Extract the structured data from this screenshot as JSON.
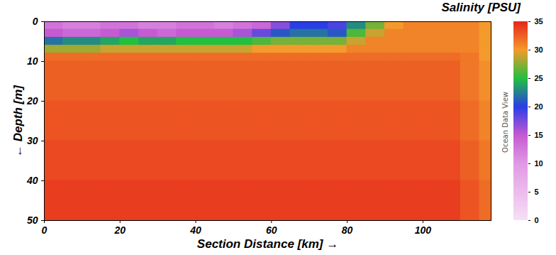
{
  "chart_data": {
    "type": "heatmap",
    "title": "Salinity [PSU]",
    "x_label": "Section Distance [km]",
    "y_label": "Depth [m]",
    "annotations": [
      "Ocean Data View"
    ],
    "xlim": [
      0,
      118
    ],
    "xticks": [
      0,
      20,
      40,
      60,
      80,
      100
    ],
    "ylim": [
      0,
      50
    ],
    "yticks": [
      0,
      10,
      20,
      30,
      40,
      50
    ],
    "x_edges": [
      0,
      5,
      10,
      15,
      20,
      25,
      30,
      35,
      40,
      45,
      50,
      55,
      60,
      65,
      70,
      75,
      80,
      85,
      90,
      95,
      100,
      105,
      110,
      115,
      118
    ],
    "depth_edges": [
      0,
      2,
      4,
      6,
      8,
      10,
      20,
      30,
      40,
      50
    ],
    "salinity": [
      [
        13,
        12,
        12,
        13,
        13,
        12,
        12,
        13,
        13,
        12,
        13,
        14,
        17,
        20,
        20,
        19,
        23,
        27,
        30,
        31,
        31,
        31,
        31,
        30
      ],
      [
        15,
        14,
        14,
        15,
        16,
        15,
        14,
        15,
        15,
        15,
        16,
        18,
        21,
        22,
        22,
        21,
        26,
        29,
        31,
        31,
        31,
        31,
        31,
        30
      ],
      [
        22,
        23,
        23,
        24,
        25,
        24,
        24,
        25,
        25,
        25,
        25,
        26,
        27,
        27,
        27,
        27,
        29,
        31,
        31,
        31,
        31,
        31,
        31,
        30
      ],
      [
        28,
        28,
        28,
        29,
        29,
        29,
        29,
        29,
        29,
        29,
        29,
        30,
        30,
        30,
        30,
        30,
        31,
        31,
        31,
        31,
        31,
        31,
        31,
        30
      ],
      [
        32,
        32,
        32,
        32,
        32,
        32,
        32,
        32,
        32,
        32,
        32,
        32,
        32,
        32,
        32,
        32,
        32,
        32,
        32,
        32,
        32,
        32,
        31.5,
        30
      ],
      [
        32.5,
        32.5,
        32.5,
        32.5,
        32.5,
        32.5,
        32.5,
        32.5,
        32.5,
        32.5,
        32.5,
        32.5,
        32.5,
        32.5,
        32.5,
        32.5,
        32.5,
        32.5,
        32.5,
        32.5,
        32.5,
        32.5,
        31.5,
        30.5
      ],
      [
        33,
        33,
        33,
        33,
        33,
        33,
        33,
        33,
        33,
        33,
        33,
        33,
        33,
        33,
        33,
        33,
        33,
        33,
        33,
        33,
        33,
        33,
        32,
        31
      ],
      [
        33.5,
        33.5,
        33.5,
        33.5,
        33.5,
        33.5,
        33.5,
        33.5,
        33.5,
        33.5,
        33.5,
        33.5,
        33.5,
        33.5,
        33.5,
        33.5,
        33.5,
        33.5,
        33.5,
        33.5,
        33.5,
        33.5,
        32.5,
        31.5
      ],
      [
        34,
        34,
        34,
        34,
        34,
        34,
        34,
        34,
        34,
        34,
        34,
        34,
        34,
        34,
        34,
        34,
        34,
        34,
        34,
        34,
        34,
        34,
        33,
        32
      ]
    ],
    "colorbar": {
      "range": [
        0,
        35
      ],
      "ticks": [
        0,
        5,
        10,
        15,
        20,
        25,
        30,
        35
      ],
      "colors": [
        "#f6e0f6",
        "#ecbcec",
        "#e09ae4",
        "#c65ad2",
        "#2a3ee6",
        "#22c040",
        "#f49a2c",
        "#e6261c"
      ]
    }
  }
}
